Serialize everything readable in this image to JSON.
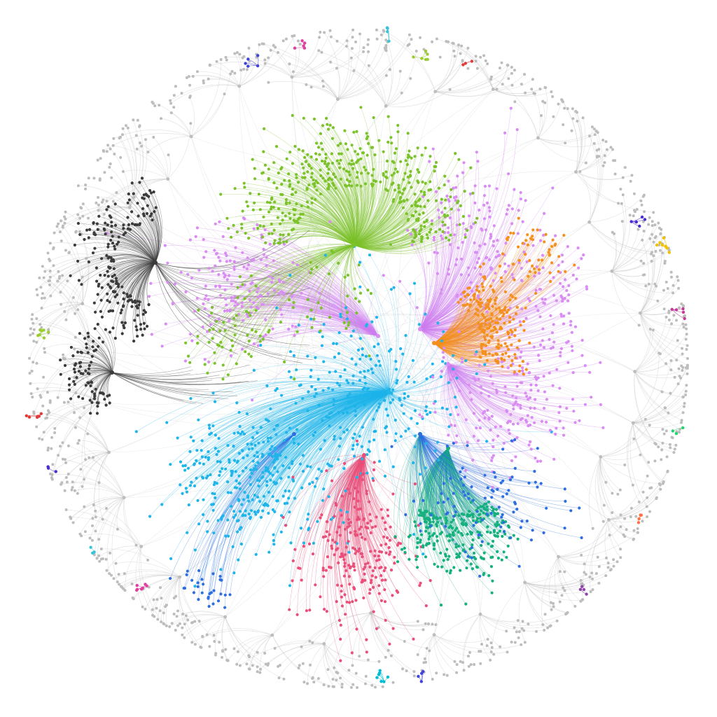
{
  "graph": {
    "background": "#ffffff",
    "edge_opacity": 0.45,
    "node_radius_hint": "small",
    "clusters": [
      {
        "id": "green",
        "color": "#7cc22b",
        "node_count": 520,
        "edge_color": "#7cc22b"
      },
      {
        "id": "violet",
        "color": "#d98cf2",
        "node_count": 600,
        "edge_color": "#cf7ff0"
      },
      {
        "id": "orange",
        "color": "#f4901e",
        "node_count": 260,
        "edge_color": "#f4901e"
      },
      {
        "id": "cyan",
        "color": "#1fb5ea",
        "node_count": 620,
        "edge_color": "#1fb5ea"
      },
      {
        "id": "pink",
        "color": "#e8507a",
        "node_count": 240,
        "edge_color": "#e8507a"
      },
      {
        "id": "teal",
        "color": "#16b07f",
        "node_count": 260,
        "edge_color": "#16b07f"
      },
      {
        "id": "blue",
        "color": "#2d6fe0",
        "node_count": 140,
        "edge_color": "#2d6fe0"
      },
      {
        "id": "dark",
        "color": "#3b3b3b",
        "node_count": 260,
        "edge_color": "#3b3b3b"
      },
      {
        "id": "gray",
        "color": "#bdbdbd",
        "node_count": 900,
        "edge_color": "#c4c4c4"
      }
    ],
    "small_components": [
      {
        "color": "#3f44d6"
      },
      {
        "color": "#e040a0"
      },
      {
        "color": "#35c4d8"
      },
      {
        "color": "#9acd32"
      },
      {
        "color": "#e03a3a"
      },
      {
        "color": "#4b2bd4"
      },
      {
        "color": "#f2c200"
      },
      {
        "color": "#c43a9a"
      },
      {
        "color": "#1fd46a"
      },
      {
        "color": "#ff7043"
      },
      {
        "color": "#8e44ad"
      },
      {
        "color": "#00bcd4"
      }
    ]
  }
}
